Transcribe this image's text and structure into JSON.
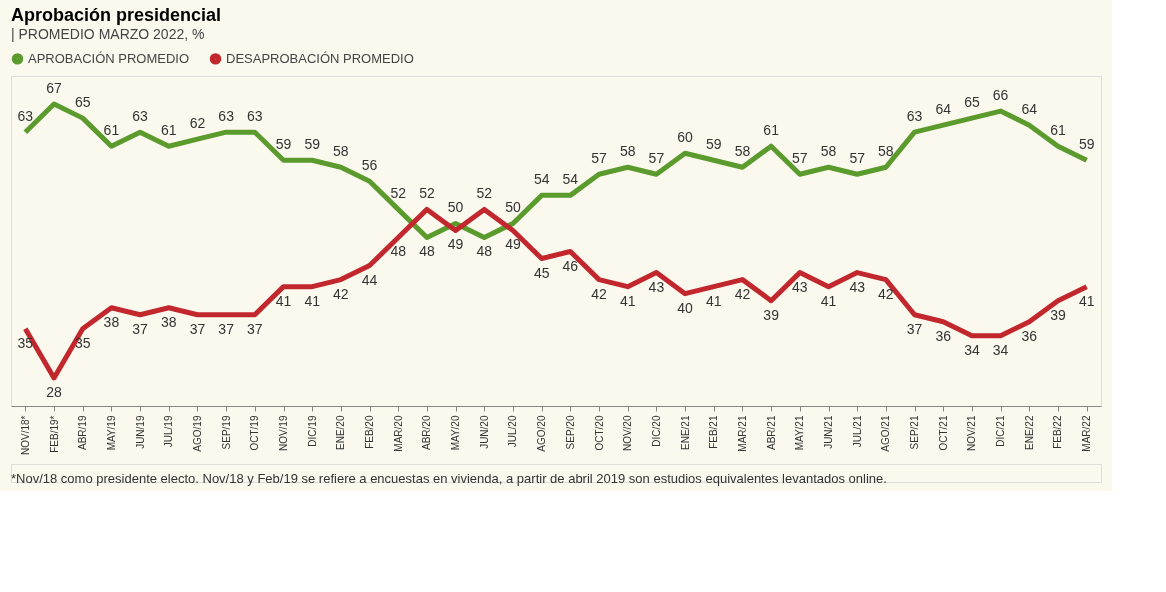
{
  "chart_data": {
    "type": "line",
    "title": "Aprobación presidencial",
    "subtitle": "| PROMEDIO MARZO 2022, %",
    "categories": [
      "NOV/18*",
      "FEB/19*",
      "ABR/19",
      "MAY/19",
      "JUN/19",
      "JUL/19",
      "AGO/19",
      "SEP/19",
      "OCT/19",
      "NOV/19",
      "DIC/19",
      "ENE/20",
      "FEB/20",
      "MAR/20",
      "ABR/20",
      "MAY/20",
      "JUN/20",
      "JUL/20",
      "AGO/20",
      "SEP/20",
      "OCT/20",
      "NOV/20",
      "DIC/20",
      "ENE/21",
      "FEB/21",
      "MAR/21",
      "ABR/21",
      "MAY/21",
      "JUN/21",
      "JUL/21",
      "AGO/21",
      "SEP/21",
      "OCT/21",
      "NOV/21",
      "DIC/21",
      "ENE/22",
      "FEB/22",
      "MAR/22"
    ],
    "series": [
      {
        "name": "APROBACIÓN PROMEDIO",
        "color": "#5b9a2c",
        "values": [
          63,
          67,
          65,
          61,
          63,
          61,
          62,
          63,
          63,
          59,
          59,
          58,
          56,
          52,
          48,
          50,
          48,
          50,
          54,
          54,
          57,
          58,
          57,
          60,
          59,
          58,
          61,
          57,
          58,
          57,
          58,
          63,
          64,
          65,
          66,
          64,
          61,
          59
        ]
      },
      {
        "name": "DESAPROBACIÓN PROMEDIO",
        "color": "#c1272d",
        "values": [
          35,
          28,
          35,
          38,
          37,
          38,
          37,
          37,
          37,
          41,
          41,
          42,
          44,
          48,
          52,
          49,
          52,
          49,
          45,
          46,
          42,
          41,
          43,
          40,
          41,
          42,
          39,
          43,
          41,
          43,
          42,
          37,
          36,
          34,
          34,
          36,
          39,
          41
        ]
      }
    ],
    "ylim": [
      24,
      71
    ],
    "data_labels": true,
    "grid": false,
    "legend": "top left",
    "marker": "none",
    "line_style": "solid",
    "tick_labels": "x",
    "annotations": [
      "*Nov/18 como presidente electo. Nov/18 y Feb/19 se refiere a encuestas en vivienda, a partir de abril 2019 son estudios equivalentes levantados online."
    ]
  }
}
